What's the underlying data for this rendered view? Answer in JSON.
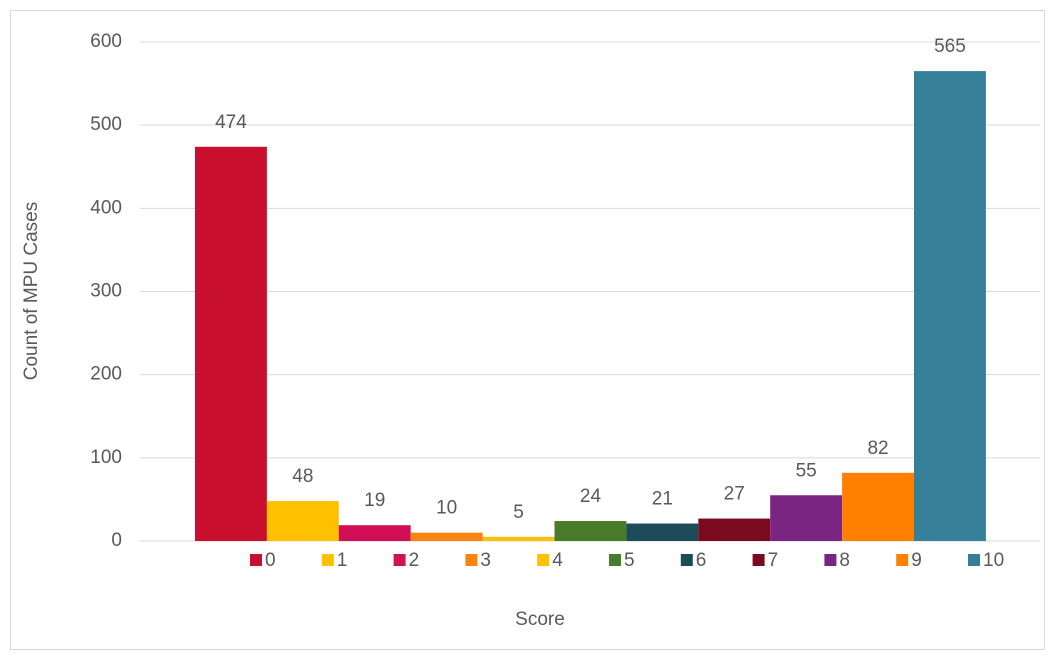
{
  "chart_data": {
    "type": "bar",
    "x_label": "Score",
    "y_label": "Count of MPU Cases",
    "categories": [
      "0",
      "1",
      "2",
      "3",
      "4",
      "5",
      "6",
      "7",
      "8",
      "9",
      "10"
    ],
    "values": [
      474,
      48,
      19,
      10,
      5,
      24,
      21,
      27,
      55,
      82,
      565
    ],
    "colors": [
      "#c8102e",
      "#ffc000",
      "#d20f56",
      "#f98510",
      "#ffc000",
      "#4a7b2b",
      "#1d4b5a",
      "#7c0a1f",
      "#7b2583",
      "#ff8000",
      "#367f99"
    ],
    "ylim": [
      0,
      600
    ],
    "yticks": [
      0,
      100,
      200,
      300,
      400,
      500,
      600
    ],
    "grid": true,
    "legend": "bottom"
  }
}
